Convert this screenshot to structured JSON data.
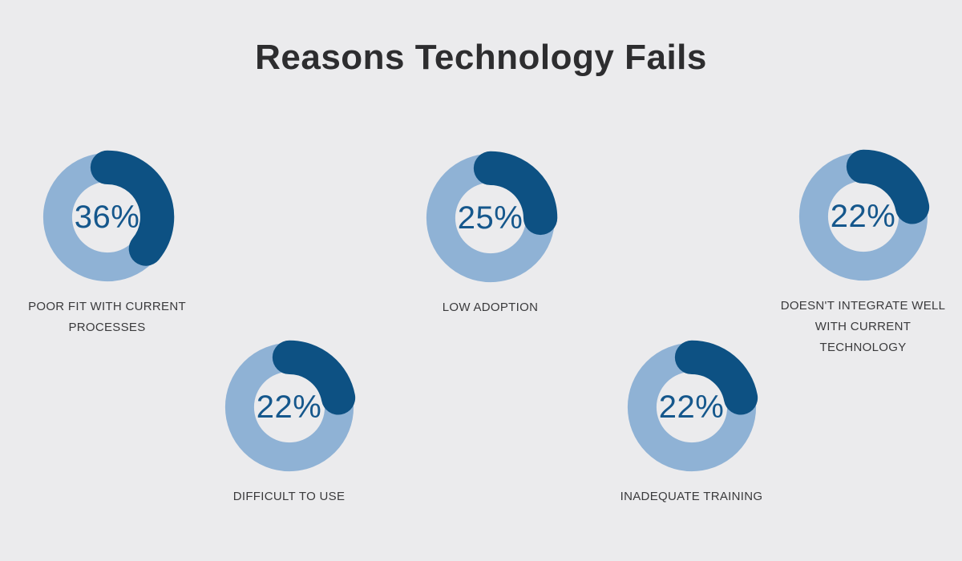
{
  "title": "Reasons Technology Fails",
  "colors": {
    "background": "#ebebed",
    "ring": "#8fb2d5",
    "arc": "#0d5183",
    "percent_text": "#15578c",
    "label_text": "#3a3a3c",
    "title_text": "#2d2d2f"
  },
  "chart_data": {
    "type": "pie",
    "subtype": "donut-set",
    "title": "Reasons Technology Fails",
    "legend_position": "none",
    "items": [
      {
        "label": "POOR FIT WITH CURRENT PROCESSES",
        "value": 36,
        "display": "36%"
      },
      {
        "label": "LOW ADOPTION",
        "value": 25,
        "display": "25%"
      },
      {
        "label": "DOESN'T INTEGRATE WELL WITH CURRENT TECHNOLOGY",
        "value": 22,
        "display": "22%"
      },
      {
        "label": "DIFFICULT TO USE",
        "value": 22,
        "display": "22%"
      },
      {
        "label": "INADEQUATE TRAINING",
        "value": 22,
        "display": "22%"
      }
    ]
  }
}
